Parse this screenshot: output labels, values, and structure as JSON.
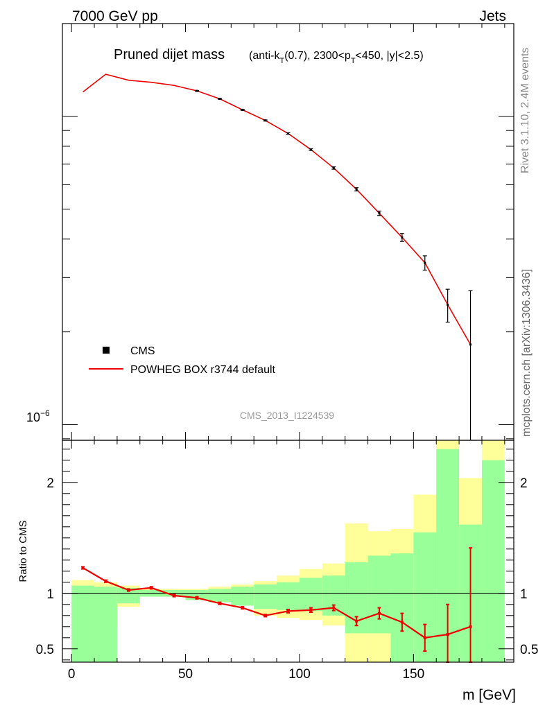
{
  "header": {
    "left": "7000 GeV pp",
    "right": "Jets"
  },
  "side_text": {
    "rivet": "Rivet 3.1.10,  2.4M events",
    "site": "mcplots.cern.ch [arXiv:1306.3436]"
  },
  "chart_data": [
    {
      "type": "line",
      "title_main": "Pruned dijet mass",
      "title_sub": "(anti-k",
      "title_sub_T1": "T",
      "title_sub_mid": "(0.7), 2300<p",
      "title_sub_T2": "T",
      "title_sub_end": "<450, |y|<2.5)",
      "watermark": "CMS_2013_I1224539",
      "ytick_label_base": "10",
      "ytick_label_exp": "−6",
      "ylog": true,
      "ylim": [
        8.9e-07,
        2e-05
      ],
      "xlim": [
        -4,
        194
      ],
      "legend": [
        {
          "name": "CMS",
          "marker": "square",
          "color": "#000000"
        },
        {
          "name": "POWHEG BOX r3744 default",
          "marker": "line",
          "color": "#ee0000"
        }
      ],
      "series": [
        {
          "name": "POWHEG BOX r3744 default",
          "color": "#ee0000",
          "x": [
            5,
            15,
            25,
            35,
            45,
            55,
            65,
            75,
            85,
            95,
            105,
            115,
            125,
            135,
            145,
            155,
            165,
            175
          ],
          "y": [
            1.2e-05,
            1.37e-05,
            1.31e-05,
            1.29e-05,
            1.26e-05,
            1.21e-05,
            1.14e-05,
            1.05e-05,
            9.7e-06,
            8.8e-06,
            7.8e-06,
            6.8e-06,
            5.8e-06,
            4.85e-06,
            4.05e-06,
            3.35e-06,
            2.45e-06,
            1.82e-06
          ]
        },
        {
          "name": "CMS",
          "color": "#000000",
          "x": [
            55,
            65,
            75,
            85,
            95,
            105,
            115,
            125,
            135,
            145,
            155,
            165,
            175
          ],
          "y": [
            1.21e-05,
            1.14e-05,
            1.05e-05,
            9.7e-06,
            8.8e-06,
            7.8e-06,
            6.8e-06,
            5.8e-06,
            4.85e-06,
            4.05e-06,
            3.35e-06,
            2.45e-06,
            1.82e-06
          ],
          "err": [
            3e-08,
            3e-08,
            3e-08,
            4e-08,
            5e-08,
            5e-08,
            6e-08,
            7e-08,
            8e-08,
            1.2e-07,
            1.8e-07,
            3e-07,
            9e-07
          ]
        }
      ]
    },
    {
      "type": "line",
      "ylabel": "Ratio to CMS",
      "xlabel": "m [GeV]",
      "ylim": [
        0.38,
        2.38
      ],
      "xlim": [
        -4,
        194
      ],
      "yticks": [
        0.5,
        1,
        2
      ],
      "ytick_labels": [
        "0.5",
        "1",
        "2"
      ],
      "xticks": [
        0,
        50,
        100,
        150
      ],
      "xtick_labels": [
        "0",
        "50",
        "100",
        "150"
      ],
      "bins": [
        0,
        10,
        20,
        30,
        40,
        50,
        60,
        70,
        80,
        90,
        100,
        110,
        120,
        130,
        140,
        150,
        160,
        170,
        180,
        190
      ],
      "band_green_lo": [
        0.38,
        0.38,
        0.91,
        0.97,
        0.97,
        0.94,
        0.92,
        0.89,
        0.86,
        0.85,
        0.84,
        0.8,
        0.64,
        0.64,
        0.38,
        0.38,
        0.38,
        0.38,
        0.38
      ],
      "band_green_hi": [
        1.07,
        1.06,
        1.05,
        1.03,
        1.03,
        1.03,
        1.04,
        1.06,
        1.08,
        1.1,
        1.14,
        1.16,
        1.28,
        1.34,
        1.36,
        1.55,
        2.3,
        1.62,
        2.2
      ],
      "band_yellow_lo": [
        0.38,
        0.7,
        0.88,
        0.97,
        0.97,
        0.94,
        0.92,
        0.89,
        0.8,
        0.78,
        0.76,
        0.71,
        0.38,
        0.38,
        0.38,
        0.38,
        0.38,
        0.38,
        0.38
      ],
      "band_yellow_hi": [
        1.12,
        1.1,
        1.07,
        1.04,
        1.04,
        1.04,
        1.06,
        1.08,
        1.11,
        1.16,
        1.22,
        1.27,
        1.63,
        1.56,
        1.58,
        1.89,
        2.4,
        2.04,
        2.4
      ],
      "ref_line": 1,
      "series": [
        {
          "name": "POWHEG BOX r3744 default",
          "color": "#ee0000",
          "x": [
            5,
            15,
            25,
            35,
            45,
            55,
            65,
            75,
            85,
            95,
            105,
            115,
            125,
            135,
            145,
            155,
            165,
            175
          ],
          "y": [
            1.23,
            1.11,
            1.03,
            1.05,
            0.98,
            0.96,
            0.91,
            0.87,
            0.8,
            0.84,
            0.85,
            0.87,
            0.75,
            0.82,
            0.74,
            0.6,
            0.63,
            0.7
          ],
          "err": [
            0.01,
            0.01,
            0.01,
            0.01,
            0.01,
            0.01,
            0.01,
            0.01,
            0.01,
            0.015,
            0.02,
            0.025,
            0.04,
            0.05,
            0.08,
            0.12,
            0.27,
            0.71
          ]
        }
      ]
    }
  ]
}
